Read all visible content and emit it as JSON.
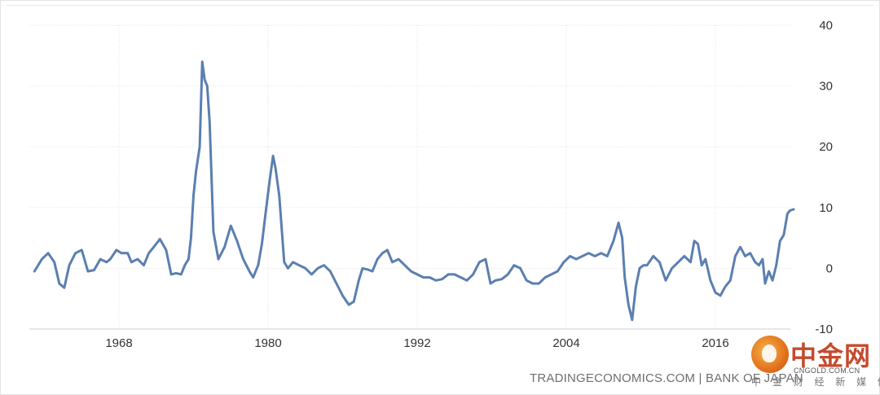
{
  "chart_data": {
    "type": "line",
    "title": "",
    "xlabel": "",
    "ylabel": "",
    "xlim": [
      1961,
      2022.3
    ],
    "ylim": [
      -10,
      40
    ],
    "x_ticks": [
      1968,
      1980,
      1992,
      2004,
      2016
    ],
    "y_ticks": [
      40,
      30,
      20,
      10,
      0,
      -10
    ],
    "grid": true,
    "line_color": "#5b7fb0",
    "series": [
      {
        "x": [
          1961.2,
          1961.8,
          1962.3,
          1962.8,
          1963.2,
          1963.6,
          1964.0,
          1964.5,
          1965.0,
          1965.5,
          1966.0,
          1966.5,
          1967.0,
          1967.3,
          1967.8,
          1968.2,
          1968.7,
          1969.0,
          1969.5,
          1970.0,
          1970.4,
          1970.8,
          1971.3,
          1971.8,
          1972.2,
          1972.6,
          1973.0,
          1973.3,
          1973.6,
          1973.8,
          1974.0,
          1974.2,
          1974.5,
          1974.7,
          1974.9,
          1975.1,
          1975.3,
          1975.6,
          1976.0,
          1976.5,
          1977.0,
          1977.5,
          1978.0,
          1978.5,
          1978.8,
          1979.2,
          1979.5,
          1979.8,
          1980.1,
          1980.4,
          1980.6,
          1980.9,
          1981.3,
          1981.6,
          1982.0,
          1982.5,
          1983.0,
          1983.5,
          1984.0,
          1984.5,
          1985.0,
          1985.5,
          1986.0,
          1986.5,
          1986.9,
          1987.3,
          1987.6,
          1988.0,
          1988.4,
          1988.8,
          1989.2,
          1989.6,
          1990.0,
          1990.5,
          1991.0,
          1991.5,
          1992.0,
          1992.5,
          1993.0,
          1993.5,
          1994.0,
          1994.5,
          1995.0,
          1995.5,
          1996.0,
          1996.5,
          1997.0,
          1997.5,
          1997.9,
          1998.3,
          1998.8,
          1999.3,
          1999.8,
          2000.3,
          2000.8,
          2001.3,
          2001.8,
          2002.3,
          2002.8,
          2003.3,
          2003.8,
          2004.3,
          2004.8,
          2005.3,
          2005.8,
          2006.3,
          2006.8,
          2007.3,
          2007.8,
          2008.2,
          2008.5,
          2008.7,
          2009.0,
          2009.3,
          2009.6,
          2009.9,
          2010.2,
          2010.5,
          2011.0,
          2011.5,
          2012.0,
          2012.5,
          2013.0,
          2013.5,
          2014.0,
          2014.3,
          2014.6,
          2014.9,
          2015.2,
          2015.6,
          2016.0,
          2016.4,
          2016.8,
          2017.2,
          2017.6,
          2018.0,
          2018.4,
          2018.8,
          2019.2,
          2019.5,
          2019.8,
          2020.0,
          2020.3,
          2020.6,
          2020.9,
          2021.2,
          2021.5,
          2021.8,
          2022.0,
          2022.3
        ],
        "y": [
          -0.5,
          1.5,
          2.5,
          1.0,
          -2.5,
          -3.2,
          0.5,
          2.5,
          3.0,
          -0.5,
          -0.3,
          1.5,
          1.0,
          1.5,
          3.0,
          2.5,
          2.5,
          1.0,
          1.5,
          0.5,
          2.5,
          3.5,
          4.8,
          3.0,
          -1.0,
          -0.8,
          -1.0,
          0.5,
          1.5,
          5.0,
          12.0,
          16.0,
          20.0,
          34.0,
          31.0,
          30.0,
          24.0,
          6.0,
          1.5,
          3.5,
          7.0,
          4.5,
          1.5,
          -0.5,
          -1.5,
          0.5,
          4.0,
          9.0,
          14.0,
          18.5,
          16.5,
          12.0,
          1.0,
          0.0,
          1.0,
          0.5,
          0.0,
          -1.0,
          0.0,
          0.5,
          -0.5,
          -2.5,
          -4.5,
          -6.0,
          -5.5,
          -2.0,
          0.0,
          -0.2,
          -0.5,
          1.5,
          2.5,
          3.0,
          1.0,
          1.5,
          0.5,
          -0.5,
          -1.0,
          -1.5,
          -1.5,
          -2.0,
          -1.8,
          -1.0,
          -1.0,
          -1.5,
          -2.0,
          -1.0,
          1.0,
          1.5,
          -2.5,
          -2.0,
          -1.8,
          -1.0,
          0.5,
          0.0,
          -2.0,
          -2.5,
          -2.5,
          -1.5,
          -1.0,
          -0.5,
          1.0,
          2.0,
          1.5,
          2.0,
          2.5,
          2.0,
          2.5,
          2.0,
          4.5,
          7.5,
          5.0,
          -1.5,
          -6.0,
          -8.5,
          -3.0,
          0.0,
          0.5,
          0.5,
          2.0,
          1.0,
          -2.0,
          0.0,
          1.0,
          2.0,
          1.0,
          4.5,
          4.0,
          0.5,
          1.5,
          -2.0,
          -4.0,
          -4.5,
          -3.0,
          -2.0,
          2.0,
          3.5,
          2.0,
          2.5,
          1.0,
          0.5,
          1.5,
          -2.5,
          -0.5,
          -2.0,
          0.5,
          4.5,
          5.5,
          9.0,
          9.5,
          9.7
        ]
      }
    ]
  },
  "source_text": "TRADINGECONOMICS.COM  |  BANK OF JAPAN",
  "watermark": {
    "name": "中金网",
    "url": "CNGOLD.COM.CN",
    "sub": "中 金 财 经 新 媒 体"
  }
}
